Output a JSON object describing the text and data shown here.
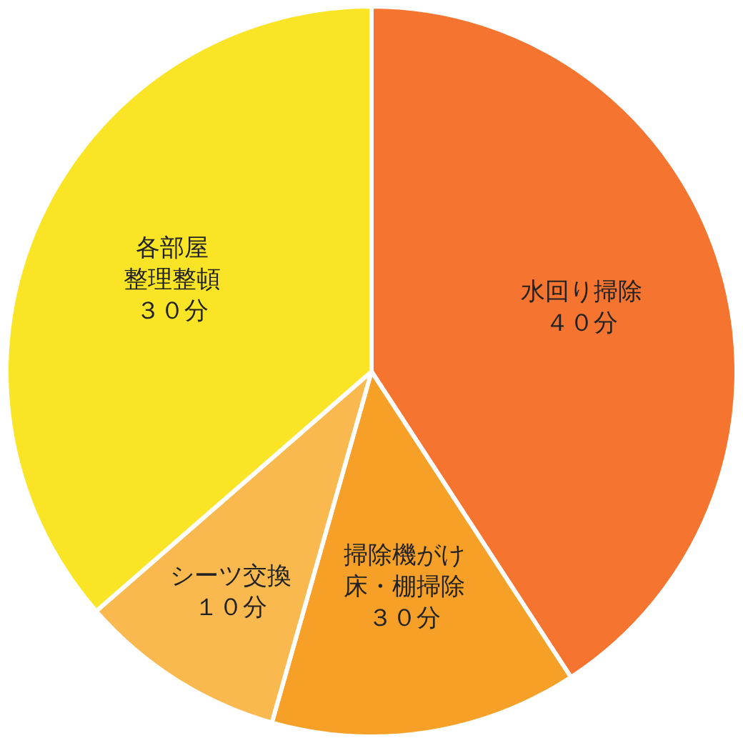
{
  "chart_data": {
    "type": "pie",
    "categories": [
      "水回り掃除４０分",
      "掃除機がけ床・棚掃除３０分",
      "シーツ交換１０分",
      "各部屋整理整頓３０分"
    ],
    "values": [
      40.8,
      13.6,
      9.2,
      36.4
    ],
    "colors": [
      "#f47430",
      "#f6a028",
      "#fab94e",
      "#f9e526"
    ],
    "legend": false
  }
}
